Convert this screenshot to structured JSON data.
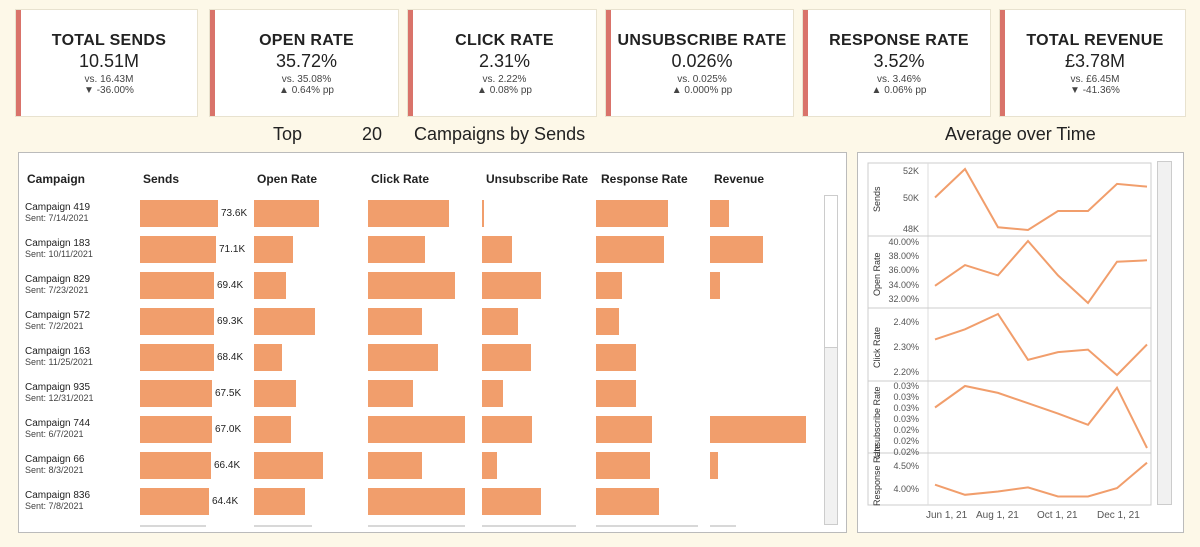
{
  "colors": {
    "accent": "#d9736a",
    "bar": "#f19e6c",
    "up": "#3f9a4e",
    "down": "#d9534f"
  },
  "kpis": [
    {
      "title": "TOTAL SENDS",
      "value": "10.51M",
      "vs": "vs. 16.43M",
      "delta": "▼ -36.00%",
      "dir": "down"
    },
    {
      "title": "OPEN RATE",
      "value": "35.72%",
      "vs": "vs. 35.08%",
      "delta": "▲ 0.64% pp",
      "dir": "up"
    },
    {
      "title": "CLICK RATE",
      "value": "2.31%",
      "vs": "vs. 2.22%",
      "delta": "▲ 0.08% pp",
      "dir": "up"
    },
    {
      "title": "UNSUBSCRIBE RATE",
      "value": "0.026%",
      "vs": "vs. 0.025%",
      "delta": "▲ 0.000% pp",
      "dir": "up"
    },
    {
      "title": "RESPONSE RATE",
      "value": "3.52%",
      "vs": "vs. 3.46%",
      "delta": "▲ 0.06% pp",
      "dir": "up"
    },
    {
      "title": "TOTAL REVENUE",
      "value": "£3.78M",
      "vs": "vs. £6.45M",
      "delta": "▼ -41.36%",
      "dir": "down"
    }
  ],
  "table": {
    "title_top": "Top",
    "top_n": "20",
    "title_rest": "Campaigns by Sends",
    "columns": [
      "Campaign",
      "Sends",
      "Open Rate",
      "Click Rate",
      "Unsubscribe Rate",
      "Response Rate",
      "Revenue"
    ],
    "rows": [
      {
        "name": "Campaign 419",
        "sent": "Sent: 7/14/2021",
        "sends": "73.6K",
        "f": [
          0.98,
          0.8,
          0.84,
          0.02,
          0.78,
          0.2
        ]
      },
      {
        "name": "Campaign 183",
        "sent": "Sent: 10/11/2021",
        "sends": "71.1K",
        "f": [
          0.95,
          0.48,
          0.59,
          0.4,
          0.74,
          0.55
        ]
      },
      {
        "name": "Campaign 829",
        "sent": "Sent: 7/23/2021",
        "sends": "69.4K",
        "f": [
          0.93,
          0.4,
          0.9,
          0.78,
          0.28,
          0.1
        ]
      },
      {
        "name": "Campaign 572",
        "sent": "Sent: 7/2/2021",
        "sends": "69.3K",
        "f": [
          0.93,
          0.75,
          0.56,
          0.47,
          0.25,
          0.0
        ]
      },
      {
        "name": "Campaign 163",
        "sent": "Sent: 11/25/2021",
        "sends": "68.4K",
        "f": [
          0.92,
          0.34,
          0.72,
          0.64,
          0.44,
          0.0
        ]
      },
      {
        "name": "Campaign 935",
        "sent": "Sent: 12/31/2021",
        "sends": "67.5K",
        "f": [
          0.9,
          0.52,
          0.46,
          0.27,
          0.44,
          0.0
        ]
      },
      {
        "name": "Campaign 744",
        "sent": "Sent: 6/7/2021",
        "sends": "67.0K",
        "f": [
          0.9,
          0.46,
          1.0,
          0.66,
          0.61,
          1.0
        ]
      },
      {
        "name": "Campaign 66",
        "sent": "Sent: 8/3/2021",
        "sends": "66.4K",
        "f": [
          0.89,
          0.85,
          0.56,
          0.2,
          0.59,
          0.08
        ]
      },
      {
        "name": "Campaign 836",
        "sent": "Sent: 7/8/2021",
        "sends": "64.4K",
        "f": [
          0.86,
          0.63,
          1.0,
          0.78,
          0.69,
          0.0
        ]
      }
    ]
  },
  "chart_data": {
    "type": "line",
    "title": "Average over Time",
    "x_labels": [
      "Jun 1, 21",
      "Aug 1, 21",
      "Oct 1, 21",
      "Dec 1, 21"
    ],
    "panels": [
      {
        "ylabel": "Sends",
        "ticks": [
          "52K",
          "50K",
          "48K"
        ],
        "values": [
          50.0,
          52.1,
          47.8,
          47.6,
          49.0,
          49.0,
          51.0,
          50.8
        ]
      },
      {
        "ylabel": "Open Rate",
        "ticks": [
          "40.00%",
          "38.00%",
          "36.00%",
          "34.00%",
          "32.00%"
        ],
        "values": [
          33.5,
          36.5,
          35.0,
          40.0,
          35.0,
          31.0,
          37.0,
          37.2
        ]
      },
      {
        "ylabel": "Click Rate",
        "ticks": [
          "2.40%",
          "2.30%",
          "2.20%"
        ],
        "values": [
          2.33,
          2.37,
          2.43,
          2.25,
          2.28,
          2.29,
          2.19,
          2.31
        ]
      },
      {
        "ylabel": "Unsubscribe Rate",
        "ticks": [
          "0.03%",
          "0.03%",
          "0.03%",
          "0.03%",
          "0.02%",
          "0.02%",
          "0.02%"
        ],
        "values": [
          0.0275,
          0.03,
          0.0292,
          0.028,
          0.0268,
          0.0255,
          0.0298,
          0.0228
        ]
      },
      {
        "ylabel": "Response Rate",
        "ticks": [
          "4.50%",
          "4.00%"
        ],
        "values": [
          3.9,
          3.6,
          3.7,
          3.82,
          3.55,
          3.55,
          3.8,
          4.55
        ]
      }
    ]
  }
}
